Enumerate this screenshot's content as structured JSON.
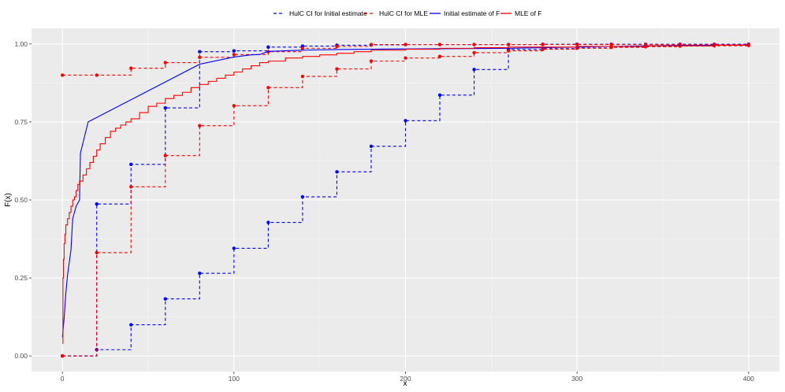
{
  "chart_data": {
    "type": "line",
    "title": "",
    "xlabel": "x",
    "ylabel": "F(x)",
    "xlim": [
      -18,
      418
    ],
    "ylim": [
      -0.05,
      1.05
    ],
    "x_ticks": [
      0,
      100,
      200,
      300,
      400
    ],
    "x_tick_labels": [
      "0",
      "100",
      "200",
      "300",
      "400"
    ],
    "y_ticks": [
      0,
      0.25,
      0.5,
      0.75,
      1.0
    ],
    "y_tick_labels": [
      "0.00",
      "0.25",
      "0.50",
      "0.75",
      "1.00"
    ],
    "grid": true,
    "legend_position": "top",
    "legend": [
      {
        "label": "HulC CI for Initial estimate",
        "color": "#0000FF",
        "dashed": true
      },
      {
        "label": "HulC CI for MLE",
        "color": "#FF0000",
        "dashed": true
      },
      {
        "label": "Initial estimate of F",
        "color": "#0000FF",
        "dashed": false
      },
      {
        "label": "MLE of F",
        "color": "#FF0000",
        "dashed": false
      }
    ],
    "series": [
      {
        "name": "HulC CI for Initial estimate",
        "color": "#0000FF",
        "style": "step-dashed",
        "points": true,
        "x": [
          0,
          20,
          40,
          60,
          80,
          100,
          120,
          140,
          160,
          180,
          200,
          220,
          240,
          260,
          280,
          300,
          320,
          340,
          360,
          380,
          400
        ],
        "lower": [
          0.0,
          0.02,
          0.1,
          0.183,
          0.265,
          0.345,
          0.428,
          0.51,
          0.59,
          0.672,
          0.754,
          0.836,
          0.918,
          0.982,
          0.985,
          0.987,
          0.99,
          0.992,
          0.994,
          0.996,
          0.997
        ],
        "upper": [
          0.0,
          0.487,
          0.614,
          0.795,
          0.975,
          0.978,
          0.99,
          0.993,
          0.996,
          0.997,
          0.998,
          0.998,
          0.998,
          0.998,
          0.999,
          0.999,
          0.999,
          0.999,
          0.999,
          0.999,
          0.999
        ]
      },
      {
        "name": "HulC CI for MLE",
        "color": "#FF0000",
        "style": "step-dashed",
        "points": true,
        "x": [
          0,
          20,
          40,
          60,
          80,
          100,
          120,
          140,
          160,
          180,
          200,
          220,
          240,
          260,
          280,
          300,
          320,
          340,
          360,
          380,
          400
        ],
        "lower": [
          0.0,
          0.331,
          0.542,
          0.642,
          0.738,
          0.802,
          0.86,
          0.896,
          0.92,
          0.945,
          0.955,
          0.96,
          0.972,
          0.978,
          0.983,
          0.986,
          0.989,
          0.991,
          0.993,
          0.994,
          0.995
        ],
        "upper": [
          0.9,
          0.9,
          0.922,
          0.94,
          0.957,
          0.966,
          0.975,
          0.986,
          0.992,
          0.998,
          0.998,
          0.998,
          0.998,
          0.998,
          0.998,
          0.998,
          0.998,
          0.998,
          0.998,
          0.998,
          0.998
        ]
      },
      {
        "name": "Initial estimate of F",
        "color": "#0000FF",
        "style": "line",
        "x": [
          0,
          0.5,
          1,
          1.5,
          2,
          3,
          4,
          5,
          6,
          8,
          10,
          10.5,
          15,
          80,
          100,
          110,
          115,
          120,
          140,
          160,
          200,
          260,
          300,
          350,
          400
        ],
        "y": [
          0.06,
          0.09,
          0.12,
          0.16,
          0.2,
          0.26,
          0.3,
          0.34,
          0.44,
          0.48,
          0.5,
          0.65,
          0.75,
          0.935,
          0.958,
          0.965,
          0.966,
          0.976,
          0.98,
          0.982,
          0.984,
          0.986,
          0.99,
          0.995,
          0.997
        ]
      },
      {
        "name": "MLE of F",
        "color": "#FF0000",
        "style": "step",
        "x": [
          0,
          0.3,
          0.6,
          1,
          1.5,
          2,
          3,
          4,
          5,
          6,
          7,
          8,
          9,
          10,
          12,
          14,
          16,
          18,
          20,
          22,
          25,
          28,
          31,
          34,
          37,
          40,
          45,
          50,
          55,
          60,
          65,
          70,
          75,
          80,
          85,
          90,
          95,
          100,
          105,
          110,
          115,
          120,
          130,
          140,
          150,
          160,
          170,
          180,
          200,
          220,
          240,
          260,
          300,
          340,
          380,
          400
        ],
        "y": [
          0.04,
          0.25,
          0.31,
          0.36,
          0.39,
          0.42,
          0.44,
          0.46,
          0.48,
          0.5,
          0.51,
          0.53,
          0.55,
          0.56,
          0.58,
          0.6,
          0.62,
          0.64,
          0.66,
          0.68,
          0.7,
          0.72,
          0.73,
          0.74,
          0.75,
          0.76,
          0.78,
          0.8,
          0.81,
          0.825,
          0.835,
          0.845,
          0.86,
          0.87,
          0.88,
          0.89,
          0.9,
          0.91,
          0.92,
          0.93,
          0.94,
          0.945,
          0.955,
          0.96,
          0.965,
          0.97,
          0.975,
          0.98,
          0.983,
          0.986,
          0.988,
          0.99,
          0.992,
          0.994,
          0.996,
          0.997
        ]
      }
    ]
  }
}
